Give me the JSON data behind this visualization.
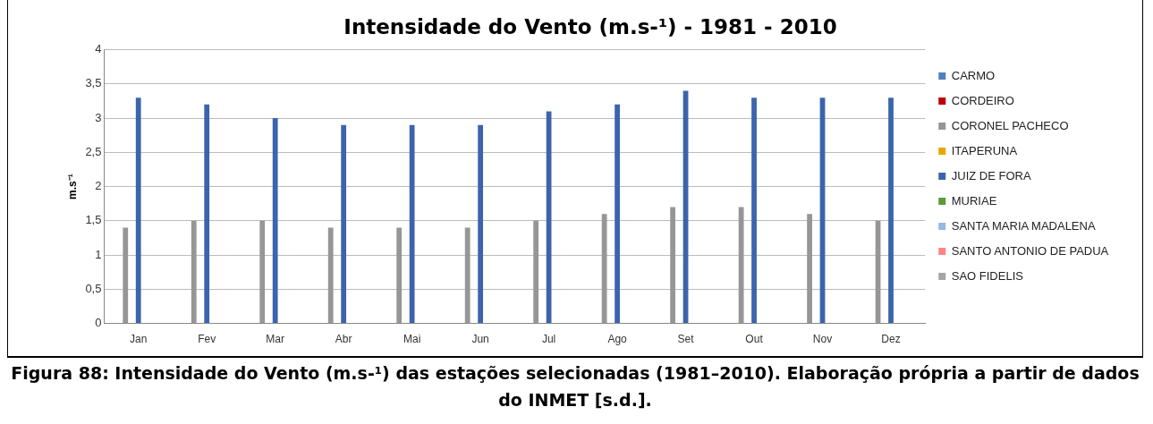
{
  "chart_data": {
    "type": "bar",
    "title": "Intensidade do Vento (m.s-¹) - 1981 - 2010",
    "ylabel": "m.s⁻¹",
    "annotations": [
      "Figura 88: Intensidade do Vento (m.s-¹) das estações selecionadas (1981–2010). Elaboração própria a partir de dados do INMET [s.d.]."
    ],
    "categories": [
      "Jan",
      "Fev",
      "Mar",
      "Abr",
      "Mai",
      "Jun",
      "Jul",
      "Ago",
      "Set",
      "Out",
      "Nov",
      "Dez"
    ],
    "series": [
      {
        "name": "CARMO",
        "color": "#4f81bd",
        "values": [
          null,
          null,
          null,
          null,
          null,
          null,
          null,
          null,
          null,
          null,
          null,
          null
        ]
      },
      {
        "name": "CORDEIRO",
        "color": "#c00000",
        "values": [
          null,
          null,
          null,
          null,
          null,
          null,
          null,
          null,
          null,
          null,
          null,
          null
        ]
      },
      {
        "name": "CORONEL PACHECO",
        "color": "#969696",
        "values": [
          1.4,
          1.5,
          1.5,
          1.4,
          1.4,
          1.4,
          1.5,
          1.6,
          1.7,
          1.7,
          1.6,
          1.5
        ]
      },
      {
        "name": "ITAPERUNA",
        "color": "#e6a800",
        "values": [
          null,
          null,
          null,
          null,
          null,
          null,
          null,
          null,
          null,
          null,
          null,
          null
        ]
      },
      {
        "name": "JUIZ DE FORA",
        "color": "#3c64ae",
        "values": [
          3.3,
          3.2,
          3.0,
          2.9,
          2.9,
          2.9,
          3.1,
          3.2,
          3.4,
          3.3,
          3.3,
          3.3
        ]
      },
      {
        "name": "MURIAE",
        "color": "#5b9a3a",
        "values": [
          null,
          null,
          null,
          null,
          null,
          null,
          null,
          null,
          null,
          null,
          null,
          null
        ]
      },
      {
        "name": "SANTA MARIA MADALENA",
        "color": "#95b9e0",
        "values": [
          null,
          null,
          null,
          null,
          null,
          null,
          null,
          null,
          null,
          null,
          null,
          null
        ]
      },
      {
        "name": "SANTO ANTONIO DE PADUA",
        "color": "#ff8585",
        "values": [
          null,
          null,
          null,
          null,
          null,
          null,
          null,
          null,
          null,
          null,
          null,
          null
        ]
      },
      {
        "name": "SAO FIDELIS",
        "color": "#a5a5a5",
        "values": [
          null,
          null,
          null,
          null,
          null,
          null,
          null,
          null,
          null,
          null,
          null,
          null
        ]
      }
    ],
    "ylim": [
      0,
      4
    ],
    "yticks": [
      0,
      {
        "value": 0.5,
        "label": "0,5"
      },
      1,
      {
        "value": 1.5,
        "label": "1,5"
      },
      2,
      {
        "value": 2.5,
        "label": "2,5"
      },
      3,
      {
        "value": 3.5,
        "label": "3,5"
      },
      4
    ],
    "grid": "y",
    "legend": "right"
  }
}
